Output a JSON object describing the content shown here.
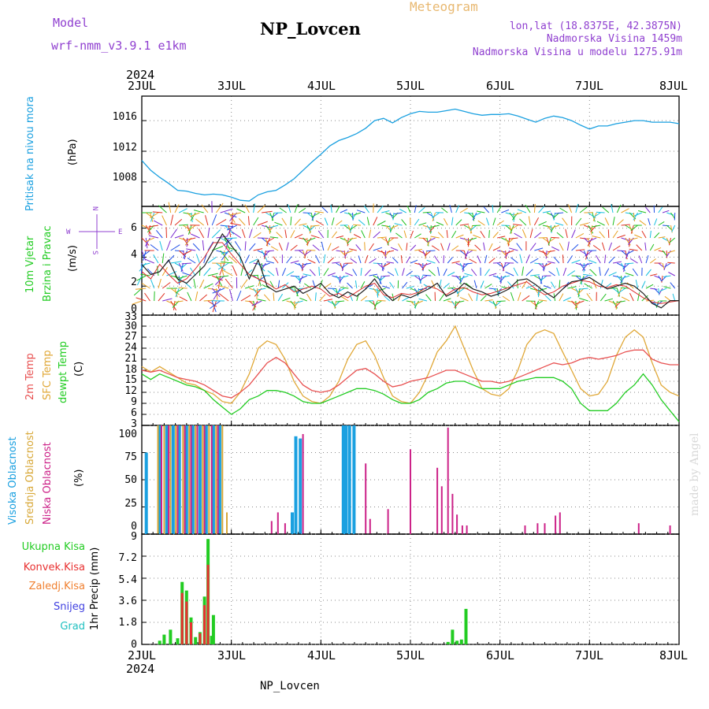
{
  "header": {
    "model_label": "Model",
    "model_name": "wrf-nmm_v3.9.1  e1km",
    "station": "NP_Lovcen",
    "meteogram": "Meteogram",
    "lonlat": "lon,lat (18.8375E, 42.3875N)",
    "elevation": "Nadmorska Visina 1459m",
    "elevation_model": "Nadmorska Visina u modelu 1275.91m",
    "footer_station": "NP_Lovcen",
    "watermark": "made by Angel"
  },
  "time_axis": {
    "year": "2024",
    "days": [
      "2JUL",
      "3JUL",
      "4JUL",
      "5JUL",
      "6JUL",
      "7JUL",
      "8JUL"
    ]
  },
  "colors": {
    "pressure": "#1aa0e0",
    "temp2m": "#e85050",
    "sfc": "#e0a838",
    "dew": "#22cc22",
    "high_cloud": "#1aa0e0",
    "mid_cloud": "#d8a838",
    "low_cloud": "#cc2288",
    "precip_total": "#22cc22",
    "precip_conv": "#e83030",
    "precip_frz": "#f08030",
    "snow": "#4040e0",
    "hail": "#20c0c0"
  },
  "panels": {
    "pressure": {
      "label1": "Pritisak na nivou mora",
      "unit": "(hPa)",
      "ticks": [
        "1008",
        "1012",
        "1016"
      ]
    },
    "wind": {
      "label1": "10m Vjetar",
      "label2": "Brzina i Pravac",
      "unit": "(m/s)",
      "ticks": [
        "0",
        "2",
        "4",
        "6"
      ],
      "compass_w": "W",
      "compass_e": "E",
      "compass_n": "N",
      "compass_s": "S"
    },
    "temp": {
      "label1": "2m Temp",
      "label2": "SFC Temp",
      "label3": "dewpt Temp",
      "unit": "(C)",
      "ticks": [
        "3",
        "6",
        "9",
        "12",
        "15",
        "18",
        "21",
        "24",
        "27",
        "30",
        "33"
      ]
    },
    "cloud": {
      "label1": "Visoka Oblacnost",
      "label2": "Srednja Oblacnost",
      "label3": "Niska Oblacnost",
      "unit": "(%)",
      "ticks": [
        "0",
        "25",
        "50",
        "75",
        "100"
      ]
    },
    "precip": {
      "label_total": "Ukupna Kisa",
      "label_conv": "Konvek.Kisa",
      "label_frz": "Zaledj.Kisa",
      "label_snow": "Snijeg",
      "label_hail": "Grad",
      "unit": "1hr Precip (mm)",
      "ticks": [
        "0",
        "1.8",
        "3.6",
        "5.4",
        "7.2",
        "9"
      ]
    }
  },
  "chart_data": [
    {
      "type": "line",
      "title": "",
      "ylabel": "Pritisak na nivou mora (hPa)",
      "xlabel": "",
      "ylim": [
        1004.8,
        1019.2
      ],
      "grid": true,
      "x": [
        0,
        0.1,
        0.2,
        0.3,
        0.4,
        0.5,
        0.6,
        0.7,
        0.8,
        0.9,
        1.0,
        1.1,
        1.2,
        1.3,
        1.4,
        1.5,
        1.6,
        1.7,
        1.8,
        1.9,
        2.0,
        2.1,
        2.2,
        2.3,
        2.4,
        2.5,
        2.6,
        2.7,
        2.8,
        2.9,
        3.0,
        3.1,
        3.2,
        3.3,
        3.4,
        3.5,
        3.6,
        3.7,
        3.8,
        3.9,
        4.0,
        4.1,
        4.2,
        4.3,
        4.4,
        4.5,
        4.6,
        4.7,
        4.8,
        4.9,
        5.0,
        5.1,
        5.2,
        5.3,
        5.4,
        5.5,
        5.6,
        5.7,
        5.8,
        5.9,
        6.0
      ],
      "series": [
        {
          "name": "Pritisak na nivou mora",
          "values": [
            1010.8,
            1009.5,
            1008.6,
            1007.8,
            1006.9,
            1006.8,
            1006.5,
            1006.3,
            1006.4,
            1006.3,
            1006.0,
            1005.6,
            1005.5,
            1006.3,
            1006.7,
            1006.9,
            1007.6,
            1008.4,
            1009.5,
            1010.6,
            1011.6,
            1012.7,
            1013.4,
            1013.8,
            1014.3,
            1015.0,
            1016.0,
            1016.3,
            1015.7,
            1016.4,
            1016.9,
            1017.2,
            1017.1,
            1017.1,
            1017.3,
            1017.5,
            1017.2,
            1016.9,
            1016.7,
            1016.8,
            1016.8,
            1016.9,
            1016.6,
            1016.2,
            1015.8,
            1016.3,
            1016.6,
            1016.4,
            1016.0,
            1015.4,
            1014.9,
            1015.3,
            1015.3,
            1015.6,
            1015.8,
            1016.0,
            1016.0,
            1015.8,
            1015.8,
            1015.8,
            1015.6
          ]
        }
      ]
    },
    {
      "type": "line",
      "title": "",
      "ylabel": "10m Vjetar Brzina i Pravac (m/s)",
      "ylim": [
        0,
        7.5
      ],
      "grid": true,
      "x": [
        0,
        0.1,
        0.2,
        0.3,
        0.4,
        0.5,
        0.6,
        0.7,
        0.8,
        0.9,
        1.0,
        1.1,
        1.2,
        1.3,
        1.4,
        1.5,
        1.6,
        1.7,
        1.8,
        1.9,
        2.0,
        2.1,
        2.2,
        2.3,
        2.4,
        2.5,
        2.6,
        2.7,
        2.8,
        2.9,
        3.0,
        3.1,
        3.2,
        3.3,
        3.4,
        3.5,
        3.6,
        3.7,
        3.8,
        3.9,
        4.0,
        4.1,
        4.2,
        4.3,
        4.4,
        4.5,
        4.6,
        4.7,
        4.8,
        4.9,
        5.0,
        5.1,
        5.2,
        5.3,
        5.4,
        5.5,
        5.6,
        5.7,
        5.8,
        5.9,
        6.0
      ],
      "series": [
        {
          "name": "",
          "values": [
            3.5,
            2.8,
            3.0,
            3.8,
            2.5,
            2.2,
            2.8,
            3.4,
            4.5,
            5.6,
            4.8,
            4.0,
            2.5,
            3.8,
            2.0,
            1.6,
            1.8,
            2.0,
            1.5,
            1.8,
            2.2,
            1.5,
            1.2,
            1.6,
            1.3,
            1.8,
            2.5,
            1.6,
            1.0,
            1.4,
            1.2,
            1.5,
            1.8,
            2.2,
            1.3,
            1.6,
            2.2,
            1.8,
            1.6,
            1.3,
            1.5,
            1.8,
            2.4,
            2.5,
            2.1,
            1.6,
            1.2,
            1.8,
            2.3,
            2.4,
            2.6,
            2.2,
            1.8,
            2.0,
            2.2,
            2.0,
            1.5,
            0.8,
            0.5,
            1.0,
            1.0
          ]
        },
        {
          "name": "",
          "values": [
            3.0,
            2.5,
            3.5,
            2.8,
            2.2,
            2.5,
            3.2,
            4.0,
            5.0,
            5.0,
            4.2,
            3.5,
            2.8,
            2.5,
            2.2,
            1.8,
            2.1,
            1.6,
            1.8,
            2.0,
            1.8,
            1.3,
            1.5,
            1.2,
            1.6,
            2.0,
            2.2,
            1.4,
            1.2,
            1.5,
            1.4,
            1.6,
            2.0,
            1.8,
            1.4,
            1.8,
            1.9,
            1.6,
            1.4,
            1.5,
            1.7,
            1.9,
            2.1,
            2.3,
            1.8,
            1.4,
            1.6,
            2.0,
            2.2,
            2.4,
            2.3,
            2.0,
            1.9,
            2.1,
            2.0,
            1.6,
            1.2,
            0.9,
            0.8,
            0.9,
            1.0
          ]
        }
      ]
    },
    {
      "type": "line",
      "title": "",
      "ylabel": "Temp (C)",
      "ylim": [
        3,
        33
      ],
      "grid": true,
      "x": [
        0,
        0.1,
        0.2,
        0.3,
        0.4,
        0.5,
        0.6,
        0.7,
        0.8,
        0.9,
        1.0,
        1.1,
        1.2,
        1.3,
        1.4,
        1.5,
        1.6,
        1.7,
        1.8,
        1.9,
        2.0,
        2.1,
        2.2,
        2.3,
        2.4,
        2.5,
        2.6,
        2.7,
        2.8,
        2.9,
        3.0,
        3.1,
        3.2,
        3.3,
        3.4,
        3.5,
        3.6,
        3.7,
        3.8,
        3.9,
        4.0,
        4.1,
        4.2,
        4.3,
        4.4,
        4.5,
        4.6,
        4.7,
        4.8,
        4.9,
        5.0,
        5.1,
        5.2,
        5.3,
        5.4,
        5.5,
        5.6,
        5.7,
        5.8,
        5.9,
        6.0
      ],
      "series": [
        {
          "name": "2m Temp",
          "values": [
            18,
            17.5,
            18,
            17,
            16,
            15.5,
            15,
            14,
            12.5,
            11,
            10.5,
            12,
            14,
            17,
            20,
            21.5,
            20,
            17,
            14,
            12.5,
            12,
            12.5,
            14,
            16,
            18,
            18.5,
            17,
            15,
            13.5,
            14,
            15,
            15.5,
            16,
            17,
            18,
            18,
            17,
            16,
            15,
            15,
            14.5,
            15,
            16,
            17,
            18,
            19,
            20,
            19.5,
            20,
            21,
            21.5,
            21,
            21.5,
            22,
            23,
            23.5,
            23.5,
            21,
            20,
            19.5,
            19.5
          ]
        },
        {
          "name": "SFC Temp",
          "values": [
            19,
            17.5,
            19,
            17.5,
            16,
            14.5,
            14,
            12.5,
            11.5,
            9.5,
            9,
            12,
            17,
            24,
            26,
            25,
            21,
            15,
            11,
            9.5,
            9,
            11,
            15,
            21,
            25,
            26,
            22,
            16,
            11,
            9.5,
            9,
            12,
            17,
            23,
            26,
            30,
            24,
            18,
            13,
            11.5,
            11,
            13,
            18,
            25,
            28,
            29,
            28,
            23,
            18,
            13,
            11,
            11.5,
            15,
            22,
            27,
            29,
            27,
            20,
            14,
            12,
            11
          ]
        },
        {
          "name": "dewpt Temp",
          "values": [
            17,
            15.5,
            17,
            16,
            15,
            14,
            13.5,
            12.5,
            10,
            8,
            6,
            7.5,
            10,
            11,
            12.5,
            12.5,
            12,
            11,
            9.5,
            9,
            9,
            10,
            11,
            12,
            13,
            13,
            12.5,
            11.5,
            10,
            9,
            9,
            10,
            12,
            13,
            14.5,
            15,
            15,
            14,
            13,
            13,
            13,
            14,
            15,
            15.5,
            16,
            16,
            16,
            15,
            13,
            9,
            7,
            7,
            7,
            9,
            12,
            14,
            17,
            14,
            10,
            7,
            4
          ]
        }
      ]
    },
    {
      "type": "bar",
      "title": "",
      "ylabel": "Oblacnost (%)",
      "ylim": [
        0,
        100
      ],
      "grid": true,
      "series": [
        {
          "name": "Visoka Oblacnost",
          "x": [
            0.05,
            0.2,
            0.28,
            0.35,
            0.42,
            0.5,
            0.57,
            0.65,
            0.72,
            0.8,
            0.87,
            1.68,
            1.72,
            1.77,
            2.25,
            2.28,
            2.32,
            2.37
          ],
          "values": [
            75,
            100,
            100,
            100,
            100,
            100,
            100,
            100,
            100,
            100,
            100,
            20,
            90,
            88,
            100,
            100,
            100,
            100
          ]
        },
        {
          "name": "Srednja Oblacnost",
          "x": [
            0.18,
            0.25,
            0.32,
            0.38,
            0.46,
            0.53,
            0.6,
            0.68,
            0.75,
            0.83,
            0.9,
            0.95
          ],
          "values": [
            100,
            100,
            100,
            100,
            100,
            100,
            100,
            100,
            100,
            100,
            100,
            20
          ]
        },
        {
          "name": "Niska Oblacnost",
          "x": [
            0.22,
            0.3,
            0.4,
            0.48,
            0.55,
            0.62,
            0.7,
            0.78,
            0.85,
            1.45,
            1.52,
            1.6,
            1.8,
            2.5,
            2.55,
            2.75,
            3.0,
            3.3,
            3.35,
            3.42,
            3.47,
            3.52,
            3.58,
            3.63,
            4.28,
            4.42,
            4.5,
            4.62,
            4.67,
            5.55,
            5.9
          ],
          "values": [
            100,
            100,
            100,
            100,
            100,
            100,
            100,
            100,
            100,
            12,
            20,
            10,
            92,
            65,
            14,
            23,
            78,
            61,
            44,
            98,
            37,
            18,
            8,
            8,
            8,
            10,
            10,
            17,
            20,
            10,
            8
          ]
        }
      ]
    },
    {
      "type": "bar",
      "title": "",
      "ylabel": "1hr Precip (mm)",
      "ylim": [
        0,
        9
      ],
      "grid": true,
      "series": [
        {
          "name": "Ukupna Kisa",
          "x": [
            0.2,
            0.25,
            0.32,
            0.4,
            0.45,
            0.5,
            0.55,
            0.6,
            0.65,
            0.7,
            0.74,
            0.78,
            0.8,
            3.42,
            3.47,
            3.52,
            3.57,
            3.62
          ],
          "values": [
            0.3,
            0.8,
            1.2,
            0.5,
            5.1,
            4.4,
            2.2,
            0.6,
            1.0,
            3.9,
            8.6,
            0.7,
            2.4,
            0.2,
            1.2,
            0.3,
            0.4,
            2.9
          ]
        },
        {
          "name": "Konvek.Kisa",
          "x": [
            0.45,
            0.5,
            0.55,
            0.65,
            0.7,
            0.74
          ],
          "values": [
            4.2,
            3.5,
            1.8,
            0.9,
            3.2,
            6.5
          ]
        },
        {
          "name": "Zaledj.Kisa",
          "x": [],
          "values": []
        },
        {
          "name": "Snijeg",
          "x": [],
          "values": []
        },
        {
          "name": "Grad",
          "x": [],
          "values": []
        }
      ]
    }
  ]
}
